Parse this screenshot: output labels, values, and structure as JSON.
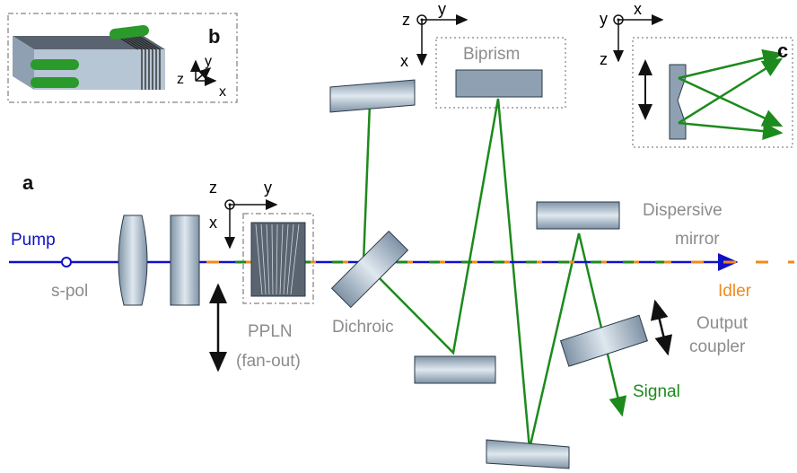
{
  "panels": {
    "a": "a",
    "b": "b",
    "c": "c"
  },
  "labels": {
    "pump": "Pump",
    "s_pol": "s-pol",
    "ppln": "PPLN",
    "fan_out": "(fan-out)",
    "dichroic": "Dichroic",
    "biprism": "Biprism",
    "dispersive_1": "Dispersive",
    "dispersive_2": "mirror",
    "idler": "Idler",
    "output_1": "Output",
    "output_2": "coupler",
    "signal": "Signal"
  },
  "axes": {
    "x": "x",
    "y": "y",
    "z": "z"
  },
  "colors": {
    "pump": "#1010c8",
    "idler": "#f08a1c",
    "signal": "#1c8a1c",
    "idler_label": "#f08a1c",
    "signal_label": "#1c8a1c",
    "pump_label": "#1010c8",
    "gray_text": "#8c8c8c"
  }
}
